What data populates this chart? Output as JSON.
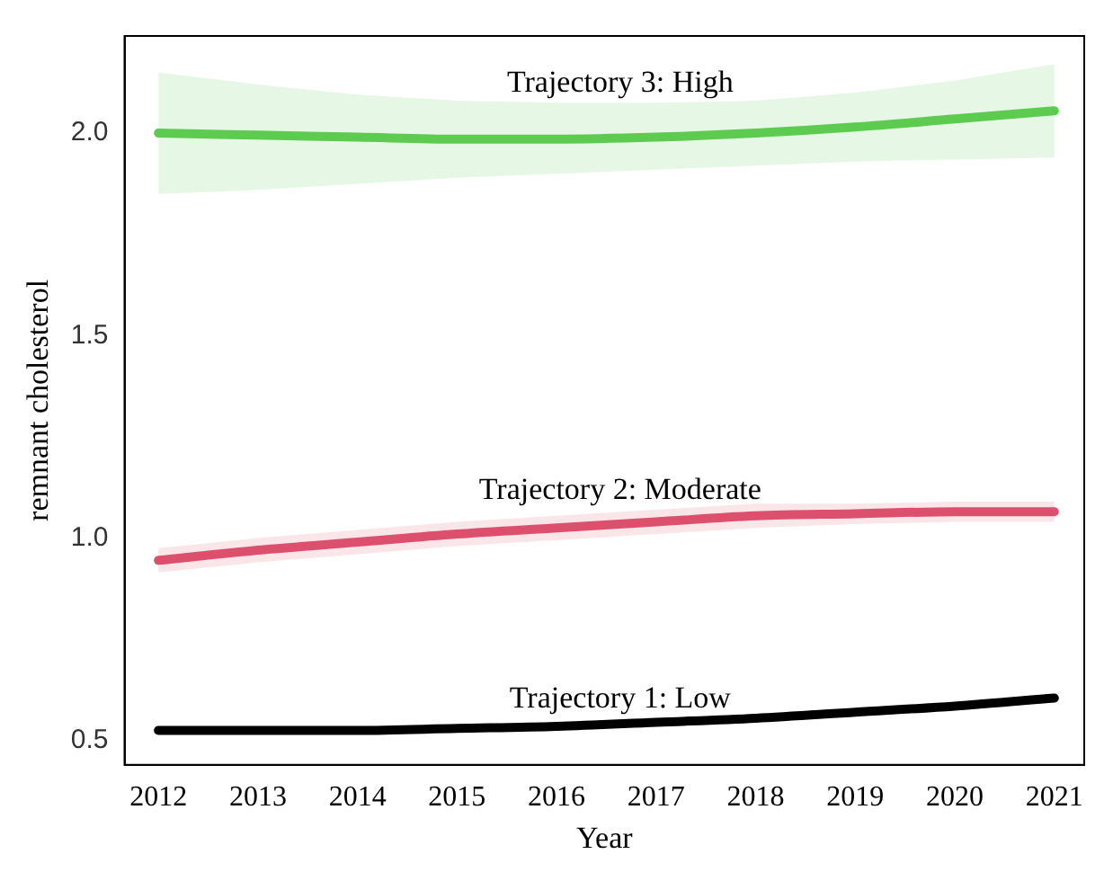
{
  "chart_data": {
    "type": "line",
    "xlabel": "Year",
    "ylabel": "remnant cholesterol",
    "x": [
      2012,
      2013,
      2014,
      2015,
      2016,
      2017,
      2018,
      2019,
      2020,
      2021
    ],
    "xlim": [
      2011.66,
      2021.3
    ],
    "xticks": [
      2012,
      2013,
      2014,
      2015,
      2016,
      2017,
      2018,
      2019,
      2020,
      2021
    ],
    "ylim": [
      0.44,
      2.24
    ],
    "yticks": [
      0.5,
      {
        "value": 1,
        "label": "1.0"
      },
      1.5,
      {
        "value": 2,
        "label": "2.0"
      }
    ],
    "grid": false,
    "legend": false,
    "marker": "none",
    "line_style": "solid",
    "series": [
      {
        "name": "Trajectory 1: Low",
        "color": "#000000",
        "values": [
          0.525,
          0.525,
          0.525,
          0.53,
          0.535,
          0.545,
          0.555,
          0.57,
          0.585,
          0.605
        ],
        "lower": [
          0.515,
          0.515,
          0.515,
          0.52,
          0.525,
          0.535,
          0.545,
          0.56,
          0.575,
          0.595
        ],
        "upper": [
          0.535,
          0.535,
          0.535,
          0.54,
          0.545,
          0.555,
          0.565,
          0.58,
          0.595,
          0.615
        ]
      },
      {
        "name": "Trajectory 2: Moderate",
        "color": "#dc4f6d",
        "values": [
          0.945,
          0.97,
          0.99,
          1.01,
          1.025,
          1.04,
          1.055,
          1.06,
          1.065,
          1.065
        ],
        "lower": [
          0.915,
          0.94,
          0.96,
          0.98,
          0.995,
          1.01,
          1.025,
          1.035,
          1.04,
          1.04
        ],
        "upper": [
          0.975,
          1.0,
          1.02,
          1.04,
          1.055,
          1.07,
          1.085,
          1.085,
          1.09,
          1.09
        ]
      },
      {
        "name": "Trajectory 3: High",
        "color": "#5ccb4f",
        "values": [
          2.0,
          1.995,
          1.99,
          1.985,
          1.985,
          1.99,
          2.0,
          2.015,
          2.035,
          2.055
        ],
        "lower": [
          1.85,
          1.86,
          1.875,
          1.89,
          1.9,
          1.91,
          1.92,
          1.93,
          1.935,
          1.94
        ],
        "upper": [
          2.15,
          2.12,
          2.095,
          2.08,
          2.075,
          2.075,
          2.08,
          2.1,
          2.13,
          2.17
        ]
      }
    ]
  }
}
